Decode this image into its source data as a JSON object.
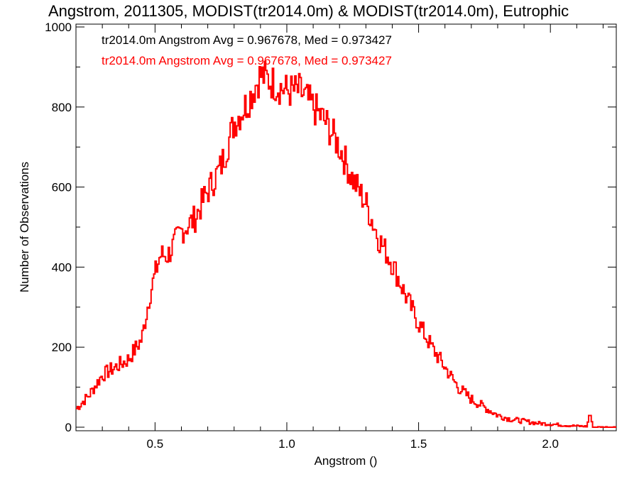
{
  "chart_data": {
    "type": "step",
    "title": "Angstrom, 2011305, MODIST(tr2014.0m) & MODIST(tr2014.0m), Eutrophic",
    "xlabel": "Angstrom ()",
    "ylabel": "Number of Observations",
    "xlim": [
      0.2,
      2.25
    ],
    "ylim": [
      0,
      1000
    ],
    "x_ticks": [
      0.5,
      1.0,
      1.5,
      2.0
    ],
    "x_tick_labels": [
      "0.5",
      "1.0",
      "1.5",
      "2.0"
    ],
    "y_ticks": [
      0,
      200,
      400,
      600,
      800,
      1000
    ],
    "y_tick_labels": [
      "0",
      "200",
      "400",
      "600",
      "800",
      "1000"
    ],
    "grid": false,
    "annotations": [
      {
        "text": "tr2014.0m Angstrom Avg = 0.967678, Med = 0.973427",
        "color": "#000000"
      },
      {
        "text": "tr2014.0m Angstrom Avg = 0.967678, Med = 0.973427",
        "color": "#ff0000"
      }
    ],
    "series": [
      {
        "color": "#ff0000",
        "x": [
          0.2,
          0.25,
          0.3,
          0.35,
          0.4,
          0.45,
          0.48,
          0.5,
          0.52,
          0.55,
          0.6,
          0.65,
          0.7,
          0.75,
          0.8,
          0.85,
          0.9,
          0.95,
          1.0,
          1.05,
          1.1,
          1.15,
          1.2,
          1.25,
          1.3,
          1.35,
          1.4,
          1.45,
          1.5,
          1.55,
          1.6,
          1.65,
          1.7,
          1.75,
          1.8,
          1.85,
          1.9,
          1.95,
          2.0,
          2.05,
          2.1,
          2.14,
          2.15,
          2.16,
          2.25
        ],
        "values": [
          45,
          80,
          130,
          150,
          170,
          220,
          330,
          380,
          430,
          430,
          490,
          520,
          590,
          650,
          760,
          810,
          880,
          860,
          840,
          840,
          800,
          760,
          700,
          620,
          560,
          470,
          410,
          330,
          260,
          200,
          150,
          100,
          70,
          50,
          30,
          20,
          15,
          10,
          8,
          5,
          3,
          2,
          40,
          0,
          0
        ]
      }
    ]
  }
}
